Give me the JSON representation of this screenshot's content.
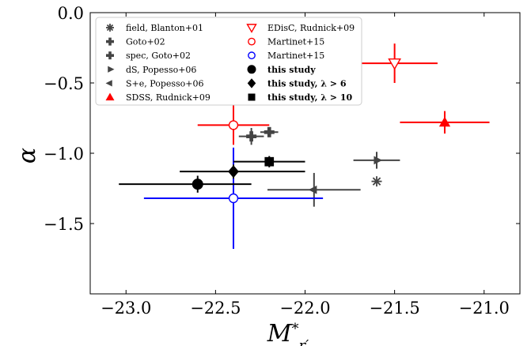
{
  "chart_data": {
    "type": "scatter",
    "xlabel": "M*r′",
    "ylabel": "α",
    "xlim": [
      -23.2,
      -20.8
    ],
    "ylim": [
      -2.0,
      0.0
    ],
    "x_reversed": true,
    "xticks": [
      -23.0,
      -22.5,
      -22.0,
      -21.5,
      -21.0
    ],
    "yticks": [
      0.0,
      -0.5,
      -1.0,
      -1.5
    ],
    "xtick_labels": [
      "−23.0",
      "−22.5",
      "−22.0",
      "−21.5",
      "−21.0"
    ],
    "ytick_labels": [
      "0.0",
      "−0.5",
      "−1.0",
      "−1.5"
    ],
    "legend_position": "top-left",
    "series": [
      {
        "name": "field, Blanton+01",
        "color": "#444444",
        "marker": "asterisk",
        "points": [
          {
            "x": -21.6,
            "y": -1.2
          }
        ]
      },
      {
        "name": "Goto+02",
        "color": "#444444",
        "marker": "plus-filled",
        "points": [
          {
            "x": -22.2,
            "y": -0.85,
            "xerr": [
              0.05,
              0.05
            ],
            "yerr": [
              0.02,
              0.02
            ]
          }
        ]
      },
      {
        "name": "spec, Goto+02",
        "color": "#444444",
        "marker": "plus-filled",
        "points": [
          {
            "x": -22.3,
            "y": -0.88,
            "xerr": [
              0.07,
              0.07
            ],
            "yerr": [
              0.06,
              0.06
            ]
          }
        ]
      },
      {
        "name": "dS, Popesso+06",
        "color": "#444444",
        "marker": "tri-right",
        "points": [
          {
            "x": -21.6,
            "y": -1.05,
            "xerr": [
              0.13,
              0.13
            ],
            "yerr": [
              0.06,
              0.06
            ]
          }
        ]
      },
      {
        "name": "S+e, Popesso+06",
        "color": "#444444",
        "marker": "tri-left",
        "points": [
          {
            "x": -21.95,
            "y": -1.26,
            "xerr": [
              0.26,
              0.26
            ],
            "yerr": [
              0.12,
              0.12
            ]
          }
        ]
      },
      {
        "name": "SDSS, Rudnick+09",
        "color": "#ff0000",
        "marker": "triangle-up",
        "points": [
          {
            "x": -21.22,
            "y": -0.78,
            "xerr": [
              0.25,
              0.25
            ],
            "yerr": [
              0.08,
              0.08
            ]
          }
        ]
      },
      {
        "name": "EDisC, Rudnick+09",
        "color": "#ff0000",
        "marker": "triangle-down-open",
        "points": [
          {
            "x": -21.5,
            "y": -0.36,
            "xerr": [
              0.24,
              0.24
            ],
            "yerr": [
              0.14,
              0.14
            ]
          }
        ]
      },
      {
        "name": "Martinet+15",
        "color": "#ff0000",
        "marker": "circle-open",
        "points": [
          {
            "x": -22.4,
            "y": -0.8,
            "xerr": [
              0.2,
              0.2
            ],
            "yerr": [
              0.14,
              0.14
            ]
          }
        ]
      },
      {
        "name": "Martinet+15",
        "color": "#0000ff",
        "marker": "circle-open",
        "points": [
          {
            "x": -22.4,
            "y": -1.32,
            "xerr": [
              0.5,
              0.5
            ],
            "yerr": [
              0.36,
              0.36
            ]
          }
        ]
      },
      {
        "name": "this study",
        "color": "#000000",
        "marker": "circle",
        "points": [
          {
            "x": -22.6,
            "y": -1.22,
            "xerr": [
              0.44,
              0.3
            ],
            "yerr": [
              0.06,
              0.06
            ]
          }
        ]
      },
      {
        "name": "this study, λ > 6",
        "color": "#000000",
        "marker": "diamond",
        "points": [
          {
            "x": -22.4,
            "y": -1.13,
            "xerr": [
              0.3,
              0.4
            ],
            "yerr": [
              0.05,
              0.05
            ]
          }
        ]
      },
      {
        "name": "this study, λ > 10",
        "color": "#000000",
        "marker": "square",
        "points": [
          {
            "x": -22.2,
            "y": -1.06,
            "xerr": [
              0.2,
              0.2
            ],
            "yerr": [
              0.04,
              0.04
            ]
          }
        ]
      }
    ]
  }
}
